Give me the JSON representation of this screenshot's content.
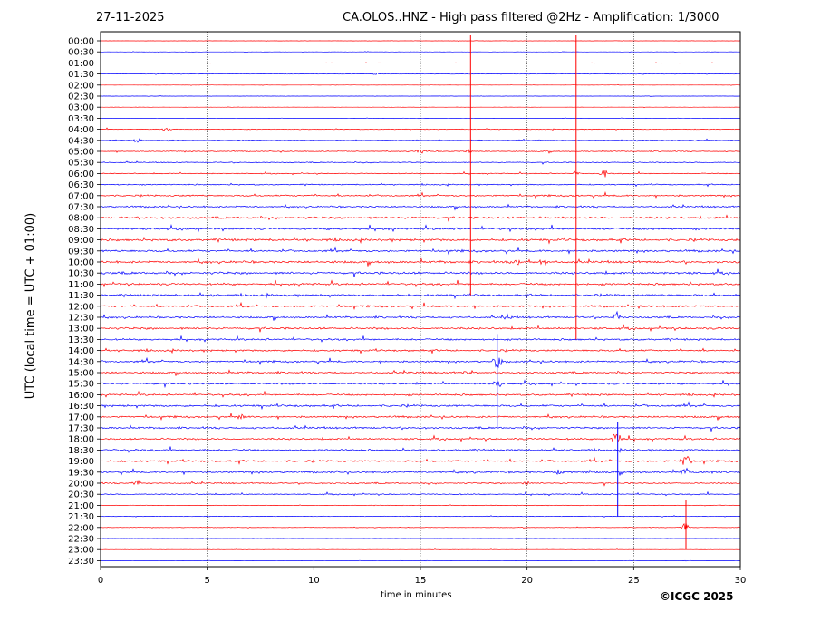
{
  "chart_data": {
    "type": "line",
    "title_left": "27-11-2025",
    "title": "CA.OLOS..HNZ - High pass filtered @2Hz - Amplification: 1/3000",
    "xlabel": "time in minutes",
    "ylabel": "UTC (local time = UTC + 01:00)",
    "xlim": [
      0,
      30
    ],
    "xticks": [
      "0",
      "5",
      "10",
      "15",
      "20",
      "25",
      "30"
    ],
    "yticks": [
      "00:00",
      "00:30",
      "01:00",
      "01:30",
      "02:00",
      "02:30",
      "03:00",
      "03:30",
      "04:00",
      "04:30",
      "05:00",
      "05:30",
      "06:00",
      "06:30",
      "07:00",
      "07:30",
      "08:00",
      "08:30",
      "09:00",
      "09:30",
      "10:00",
      "10:30",
      "11:00",
      "11:30",
      "12:00",
      "12:30",
      "13:00",
      "13:30",
      "14:00",
      "14:30",
      "15:00",
      "15:30",
      "16:00",
      "16:30",
      "17:00",
      "17:30",
      "18:00",
      "18:30",
      "19:00",
      "19:30",
      "20:00",
      "20:30",
      "21:00",
      "21:30",
      "22:00",
      "22:30",
      "23:00",
      "23:30"
    ],
    "series_colors": [
      "#ff0000",
      "#0000ff"
    ],
    "vertical_grid": "dotted",
    "noise_level": [
      0.05,
      0.05,
      0.05,
      0.1,
      0.05,
      0.05,
      0.05,
      0.05,
      0.15,
      0.15,
      0.2,
      0.2,
      0.2,
      0.25,
      0.35,
      0.35,
      0.45,
      0.45,
      0.5,
      0.45,
      0.5,
      0.5,
      0.45,
      0.45,
      0.4,
      0.4,
      0.45,
      0.4,
      0.4,
      0.4,
      0.4,
      0.4,
      0.4,
      0.45,
      0.4,
      0.4,
      0.4,
      0.4,
      0.4,
      0.4,
      0.3,
      0.25,
      0.1,
      0.1,
      0.1,
      0.05,
      0.05,
      0.05
    ],
    "events": [
      {
        "row": 3,
        "t": 12.9,
        "amp": 0.5
      },
      {
        "row": 8,
        "t": 3.1,
        "amp": 0.6
      },
      {
        "row": 9,
        "t": 1.7,
        "amp": 0.6
      },
      {
        "row": 10,
        "t": 15.0,
        "amp": 0.7
      },
      {
        "row": 10,
        "t": 17.2,
        "amp": 0.6
      },
      {
        "row": 12,
        "t": 22.3,
        "amp": 0.6
      },
      {
        "row": 12,
        "t": 23.6,
        "amp": 1.5
      },
      {
        "row": 20,
        "t": 19.5,
        "amp": 0.8
      },
      {
        "row": 20,
        "t": 20.8,
        "amp": 1.2
      },
      {
        "row": 25,
        "t": 19.1,
        "amp": 0.7
      },
      {
        "row": 25,
        "t": 24.2,
        "amp": 1.2
      },
      {
        "row": 29,
        "t": 18.6,
        "amp": 2.5
      },
      {
        "row": 30,
        "t": 17.2,
        "amp": 0.6
      },
      {
        "row": 31,
        "t": 18.6,
        "amp": 1.0
      },
      {
        "row": 34,
        "t": 6.6,
        "amp": 0.7
      },
      {
        "row": 36,
        "t": 24.2,
        "amp": 2.0
      },
      {
        "row": 38,
        "t": 27.4,
        "amp": 1.8
      },
      {
        "row": 39,
        "t": 27.4,
        "amp": 1.8
      },
      {
        "row": 39,
        "t": 21.5,
        "amp": 0.6
      },
      {
        "row": 40,
        "t": 1.7,
        "amp": 1.0
      },
      {
        "row": 40,
        "t": 20.0,
        "amp": 0.6
      },
      {
        "row": 44,
        "t": 27.4,
        "amp": 1.8
      }
    ],
    "spikes": [
      {
        "t": 17.35,
        "from_row": 0,
        "to_row": 23,
        "color": "#ff0000"
      },
      {
        "t": 22.3,
        "from_row": 0,
        "to_row": 27,
        "color": "#ff0000"
      },
      {
        "t": 18.6,
        "from_row": 27,
        "to_row": 35,
        "color": "#0000ff"
      },
      {
        "t": 24.25,
        "from_row": 35,
        "to_row": 43,
        "color": "#0000ff"
      },
      {
        "t": 27.45,
        "from_row": 42,
        "to_row": 46,
        "color": "#ff0000"
      }
    ]
  },
  "copyright": "©ICGC 2025"
}
